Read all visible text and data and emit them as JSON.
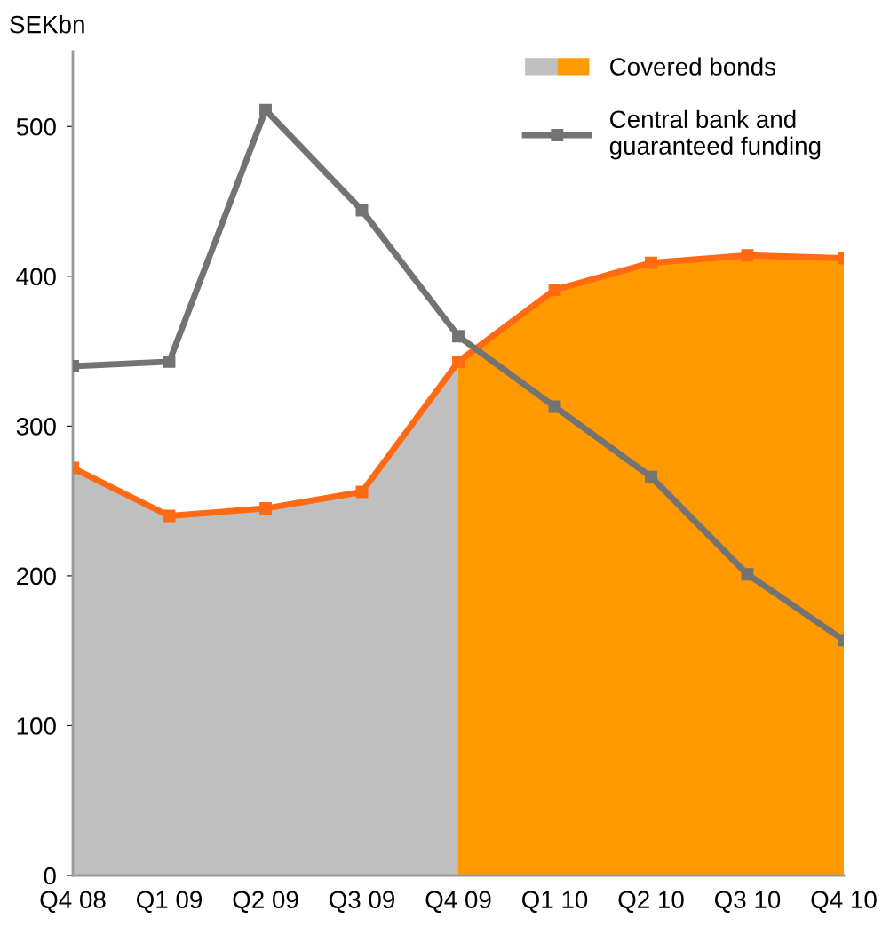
{
  "chart_data": {
    "type": "line",
    "ylabel": "SEKbn",
    "categories": [
      "Q4 08",
      "Q1 09",
      "Q2 09",
      "Q3 09",
      "Q4 09",
      "Q1 10",
      "Q2 10",
      "Q3 10",
      "Q4 10"
    ],
    "series": [
      {
        "type": "area",
        "name": "Covered bonds",
        "color": "#bfbfbf",
        "values": [
          272,
          240,
          245,
          256,
          343,
          null,
          null,
          null,
          null
        ]
      },
      {
        "type": "area",
        "color": "#ff9900",
        "values": [
          null,
          null,
          null,
          null,
          343,
          391,
          409,
          414,
          412
        ]
      },
      {
        "color": "#ff6a13",
        "marker": "square",
        "values": [
          272,
          240,
          245,
          256,
          343,
          391,
          409,
          414,
          412
        ]
      },
      {
        "name": "Central bank and\nguaranteed funding",
        "color": "#737373",
        "marker": "square",
        "values": [
          340,
          343,
          511,
          444,
          360,
          313,
          266,
          201,
          157
        ]
      }
    ],
    "ylim": [
      0,
      550
    ],
    "yticks": [
      0,
      100,
      200,
      300,
      400,
      500
    ],
    "grid": false,
    "legend": "top right",
    "line_style": "solid"
  }
}
